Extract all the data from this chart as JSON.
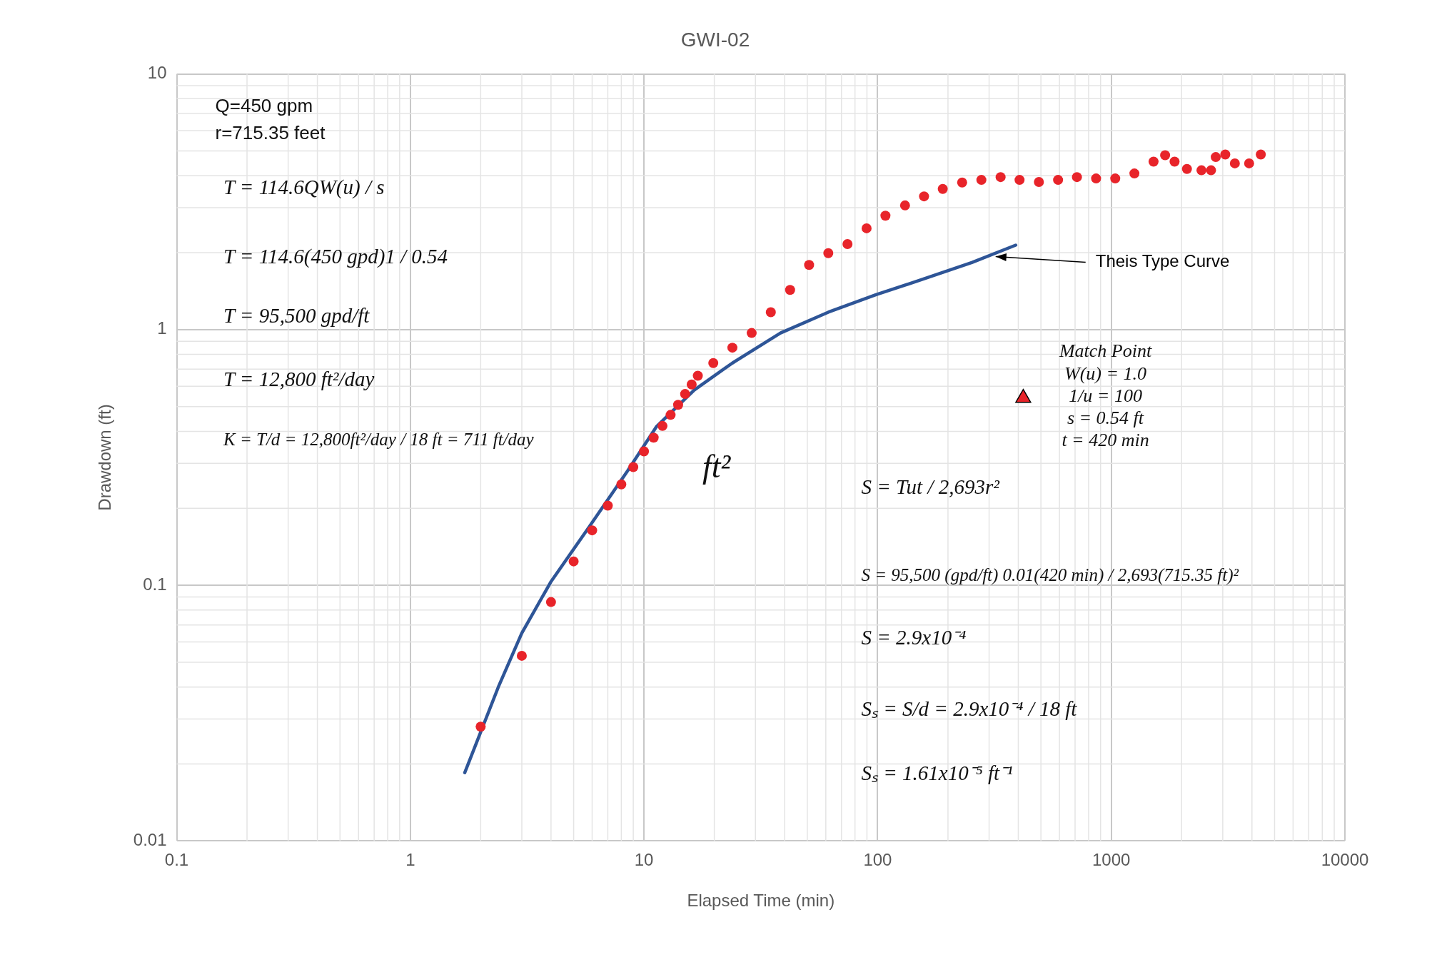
{
  "chart_data": {
    "type": "scatter",
    "title": "GWI-02",
    "xlabel": "Elapsed Time (min)",
    "ylabel": "Drawdown (ft)",
    "log": "xy",
    "grid": true,
    "legend": false,
    "xlim": [
      0.1,
      10000
    ],
    "xticks": [
      0.1,
      1,
      10,
      100,
      1000,
      10000
    ],
    "ylim": [
      0.01,
      10
    ],
    "yticks": [
      0.01,
      0.1,
      1,
      10
    ],
    "series": [
      {
        "marker": "circle",
        "color": "#e8242a",
        "x": [
          2,
          3,
          4,
          5,
          6,
          7,
          8,
          9,
          10,
          11,
          12,
          13,
          14,
          15,
          16,
          17,
          19.8,
          23.9,
          28.9,
          34.9,
          42.2,
          50.9,
          61.5,
          74.3,
          89.7,
          108,
          131,
          158,
          190,
          230,
          278,
          336,
          405,
          490,
          592,
          713,
          861,
          1040,
          1256,
          1517,
          1700,
          1866,
          2108,
          2432,
          2673,
          2800,
          3076,
          3380,
          3890,
          4365
        ],
        "values": [
          0.028,
          0.053,
          0.086,
          0.124,
          0.164,
          0.205,
          0.248,
          0.29,
          0.334,
          0.378,
          0.42,
          0.464,
          0.508,
          0.56,
          0.61,
          0.66,
          0.74,
          0.85,
          0.97,
          1.17,
          1.43,
          1.79,
          1.99,
          2.16,
          2.49,
          2.79,
          3.06,
          3.32,
          3.55,
          3.76,
          3.85,
          3.95,
          3.85,
          3.78,
          3.85,
          3.95,
          3.9,
          3.9,
          4.08,
          4.54,
          4.81,
          4.54,
          4.25,
          4.2,
          4.2,
          4.73,
          4.84,
          4.47,
          4.47,
          4.84
        ]
      },
      {
        "type": "line",
        "marker": "none",
        "color": "#2e5597",
        "x": [
          1.71,
          2.38,
          3.0,
          3.99,
          5.82,
          8.5,
          11.3,
          16.4,
          23.9,
          38.4,
          61.5,
          98.5,
          158,
          253,
          390
        ],
        "values": [
          0.0185,
          0.04,
          0.065,
          0.103,
          0.169,
          0.28,
          0.417,
          0.58,
          0.74,
          0.97,
          1.17,
          1.37,
          1.58,
          1.83,
          2.14
        ]
      },
      {
        "marker": "triangle",
        "color": "#e8242a",
        "x": [
          420
        ],
        "values": [
          0.54
        ]
      }
    ],
    "annotations": [
      "Q=450 gpm",
      "r=715.35 feet",
      "T = 114.6QW(u) / s",
      "T = 114.6(450 gpd)1 / 0.54",
      "T = 95,500 gpd/ft",
      "T = 12,800 ft²/day",
      "K = T/d = 12,800ft²/day / 18 ft = 711 ft/day",
      "ft²",
      "Match Point",
      "W(u) = 1.0",
      "1/u = 100",
      "s = 0.54 ft",
      "t = 420 min",
      "S = Tut / 2,693r²",
      "S = 95,500 (gpd/ft) 0.01(420 min) / 2,693(715.35 ft)²",
      "S = 2.9x10⁻⁴",
      "Sₛ = S/d = 2.9x10⁻⁴ / 18 ft",
      "Sₛ = 1.61x10⁻⁵ ft⁻¹",
      {
        "text": "Theis Type Curve",
        "x": 320,
        "y": 1.93
      }
    ]
  }
}
